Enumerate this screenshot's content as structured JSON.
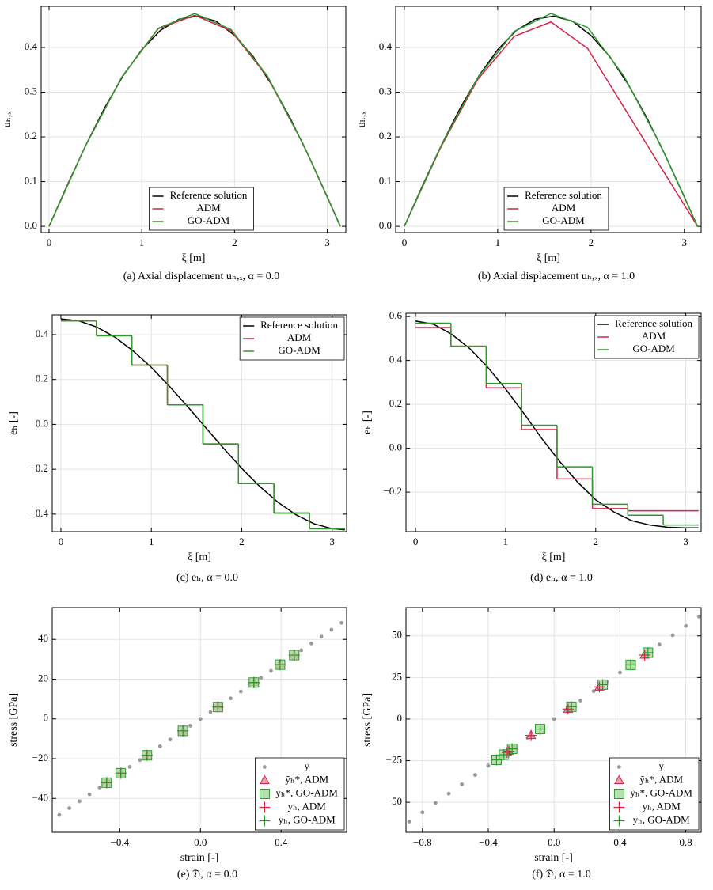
{
  "chart_data": [
    {
      "type": "line",
      "caption": "(a) Axial displacement uₕ,ₓ, α = 0.0",
      "x_label": "ξ [m]",
      "y_label": "uₕ,ₓ",
      "xlim": [
        -0.085,
        3.2
      ],
      "ylim": [
        -0.014,
        0.492
      ],
      "xticks": [
        0,
        1,
        2,
        3
      ],
      "yticks": [
        {
          "value": 0,
          "label": "0.0"
        },
        0.1,
        0.2,
        0.3,
        0.4
      ],
      "grid": true,
      "legend": "lower center",
      "series": [
        {
          "name": "Reference solution",
          "color": "#000000",
          "x": [
            0,
            0.2,
            0.4,
            0.6,
            0.8,
            1.0,
            1.2,
            1.4,
            1.6,
            1.8,
            2.0,
            2.2,
            2.4,
            2.6,
            2.8,
            3.0,
            3.14
          ],
          "values": [
            0,
            0.0934,
            0.183,
            0.265,
            0.337,
            0.395,
            0.438,
            0.463,
            0.47,
            0.459,
            0.427,
            0.38,
            0.317,
            0.242,
            0.157,
            0.066,
            0
          ]
        },
        {
          "name": "ADM",
          "color": "#d6234a",
          "x": [
            0,
            0.393,
            0.785,
            1.178,
            1.571,
            1.963,
            2.356,
            2.749,
            3.142
          ],
          "values": [
            0,
            0.18,
            0.334,
            0.442,
            0.472,
            0.437,
            0.334,
            0.18,
            0
          ]
        },
        {
          "name": "GO-ADM",
          "color": "#2e9a2e",
          "x": [
            0,
            0.393,
            0.785,
            1.178,
            1.571,
            1.963,
            2.356,
            2.749,
            3.142
          ],
          "values": [
            0,
            0.18,
            0.334,
            0.443,
            0.476,
            0.44,
            0.336,
            0.18,
            0
          ]
        }
      ]
    },
    {
      "type": "line",
      "caption": "(b) Axial displacement uₕ,ₓ, α = 1.0",
      "x_label": "ξ [m]",
      "y_label": "uₕ,ₓ",
      "xlim": [
        -0.093,
        3.18
      ],
      "ylim": [
        -0.014,
        0.492
      ],
      "xticks": [
        0,
        1,
        2,
        3
      ],
      "yticks": [
        {
          "value": 0,
          "label": "0.0"
        },
        0.1,
        0.2,
        0.3,
        0.4
      ],
      "grid": true,
      "legend": "lower center",
      "series": [
        {
          "name": "Reference solution",
          "color": "#000000",
          "x": [
            0,
            0.2,
            0.4,
            0.6,
            0.8,
            1.0,
            1.2,
            1.4,
            1.6,
            1.8,
            2.0,
            2.2,
            2.4,
            2.6,
            2.8,
            3.0,
            3.14
          ],
          "values": [
            0,
            0.0934,
            0.183,
            0.265,
            0.337,
            0.395,
            0.438,
            0.463,
            0.47,
            0.459,
            0.427,
            0.38,
            0.317,
            0.242,
            0.157,
            0.066,
            0
          ]
        },
        {
          "name": "ADM",
          "color": "#d6234a",
          "x": [
            0,
            0.393,
            0.785,
            1.178,
            1.571,
            1.963,
            2.356,
            2.749,
            3.142
          ],
          "values": [
            0,
            0.178,
            0.328,
            0.425,
            0.457,
            0.398,
            0.265,
            0.132,
            0
          ]
        },
        {
          "name": "GO-ADM",
          "color": "#2e9a2e",
          "x": [
            0,
            0.393,
            0.785,
            1.178,
            1.571,
            1.963,
            2.356,
            2.749,
            3.142
          ],
          "values": [
            0,
            0.18,
            0.332,
            0.436,
            0.476,
            0.445,
            0.335,
            0.18,
            0
          ]
        }
      ]
    },
    {
      "type": "step",
      "caption": "(c) eₕ, α = 0.0",
      "x_label": "ξ [m]",
      "y_label": "eₕ [-]",
      "xlim": [
        -0.096,
        3.16
      ],
      "ylim": [
        -0.478,
        0.488
      ],
      "xticks": [
        0,
        1,
        2,
        3
      ],
      "yticks": [
        {
          "value": -0.4,
          "label": "−0.4"
        },
        {
          "value": -0.2,
          "label": "−0.2"
        },
        {
          "value": 0,
          "label": "0.0"
        },
        0.2,
        0.4
      ],
      "grid": true,
      "legend": "upper right",
      "series": [
        {
          "name": "Reference solution",
          "color": "#000000",
          "x": [
            0,
            0.2,
            0.4,
            0.6,
            0.8,
            1.0,
            1.2,
            1.4,
            1.6,
            1.8,
            2.0,
            2.2,
            2.4,
            2.6,
            2.8,
            3.0,
            3.14
          ],
          "values": [
            0.47,
            0.461,
            0.433,
            0.388,
            0.327,
            0.254,
            0.17,
            0.08,
            -0.014,
            -0.107,
            -0.196,
            -0.277,
            -0.347,
            -0.403,
            -0.443,
            -0.465,
            -0.47
          ]
        },
        {
          "name": "ADM",
          "color": "#d6234a",
          "bins": [
            0,
            0.393,
            0.785,
            1.178,
            1.571,
            1.963,
            2.356,
            2.749,
            3.142
          ],
          "values": [
            0.461,
            0.395,
            0.264,
            0.087,
            -0.087,
            -0.264,
            -0.395,
            -0.465
          ]
        },
        {
          "name": "GO-ADM",
          "color": "#2e9a2e",
          "bins": [
            0,
            0.393,
            0.785,
            1.178,
            1.571,
            1.963,
            2.356,
            2.749,
            3.142
          ],
          "values": [
            0.461,
            0.395,
            0.264,
            0.087,
            -0.087,
            -0.264,
            -0.395,
            -0.465
          ]
        }
      ]
    },
    {
      "type": "step",
      "caption": "(d) eₕ, α = 1.0",
      "x_label": "ξ [m]",
      "y_label": "eₕ [-]",
      "xlim": [
        -0.106,
        3.17
      ],
      "ylim": [
        -0.38,
        0.615
      ],
      "xticks": [
        0,
        1,
        2,
        3
      ],
      "yticks": [
        {
          "value": -0.2,
          "label": "−0.2"
        },
        {
          "value": 0,
          "label": "0.0"
        },
        0.2,
        0.4,
        0.6
      ],
      "grid": true,
      "legend": "upper right",
      "series": [
        {
          "name": "Reference solution",
          "color": "#000000",
          "x": [
            0,
            0.2,
            0.4,
            0.6,
            0.8,
            1.0,
            1.2,
            1.4,
            1.6,
            1.8,
            2.0,
            2.2,
            2.4,
            2.6,
            2.8,
            3.0,
            3.14
          ],
          "values": [
            0.58,
            0.565,
            0.52,
            0.455,
            0.37,
            0.27,
            0.16,
            0.045,
            -0.06,
            -0.155,
            -0.235,
            -0.29,
            -0.33,
            -0.35,
            -0.36,
            -0.363,
            -0.363
          ]
        },
        {
          "name": "ADM",
          "color": "#d6234a",
          "bins": [
            0,
            0.393,
            0.785,
            1.178,
            1.571,
            1.963,
            2.356,
            2.749,
            3.142
          ],
          "values": [
            0.55,
            0.465,
            0.275,
            0.085,
            -0.14,
            -0.275,
            -0.285,
            -0.285
          ]
        },
        {
          "name": "GO-ADM",
          "color": "#2e9a2e",
          "bins": [
            0,
            0.393,
            0.785,
            1.178,
            1.571,
            1.963,
            2.356,
            2.749,
            3.142
          ],
          "values": [
            0.57,
            0.465,
            0.295,
            0.105,
            -0.085,
            -0.255,
            -0.305,
            -0.35
          ]
        }
      ]
    },
    {
      "type": "scatter",
      "caption": "(e) 𝔇, α = 0.0",
      "x_label": "strain [-]",
      "y_label": "stress [GPa]",
      "xlim": [
        -0.735,
        0.725
      ],
      "ylim": [
        -57,
        56
      ],
      "xticks": [
        {
          "value": -0.4,
          "label": "−0.4"
        },
        {
          "value": 0,
          "label": "0.0"
        },
        0.4
      ],
      "yticks": [
        {
          "value": -40,
          "label": "−40"
        },
        {
          "value": -20,
          "label": "−20"
        },
        0,
        20,
        40
      ],
      "grid": true,
      "legend": "lower right",
      "series": [
        {
          "name": "ỹ",
          "marker": "dot",
          "color": "#9a9a9a",
          "x": [
            -0.7,
            -0.65,
            -0.6,
            -0.55,
            -0.5,
            -0.45,
            -0.4,
            -0.35,
            -0.3,
            -0.25,
            -0.2,
            -0.15,
            -0.1,
            -0.05,
            0,
            0.05,
            0.1,
            0.15,
            0.2,
            0.25,
            0.3,
            0.35,
            0.4,
            0.45,
            0.5,
            0.55,
            0.6,
            0.65,
            0.7
          ],
          "values": [
            -48.3,
            -44.85,
            -41.4,
            -37.95,
            -34.5,
            -31.05,
            -27.6,
            -24.15,
            -20.7,
            -17.25,
            -13.8,
            -10.35,
            -6.9,
            -3.45,
            0,
            3.45,
            6.9,
            10.35,
            13.8,
            17.25,
            20.7,
            24.15,
            27.6,
            31.05,
            34.5,
            37.95,
            41.4,
            44.85,
            48.3
          ]
        },
        {
          "name": "ỹₕ*, ADM",
          "marker": "triangle",
          "color": "#d6234a",
          "x": [
            -0.465,
            -0.395,
            -0.265,
            -0.087,
            0.087,
            0.265,
            0.395,
            0.465
          ],
          "values": [
            -32.1,
            -27.3,
            -18.3,
            -6.0,
            6.0,
            18.3,
            27.3,
            32.1
          ]
        },
        {
          "name": "ỹₕ*, GO-ADM",
          "marker": "square",
          "color": "#2e9a2e",
          "x": [
            -0.465,
            -0.395,
            -0.265,
            -0.087,
            0.087,
            0.265,
            0.395,
            0.465
          ],
          "values": [
            -32.1,
            -27.3,
            -18.3,
            -6.0,
            6.0,
            18.3,
            27.3,
            32.1
          ]
        },
        {
          "name": "yₕ, ADM",
          "marker": "plus",
          "color": "#d6234a",
          "x": [
            -0.465,
            -0.395,
            -0.265,
            -0.087,
            0.087,
            0.265,
            0.395,
            0.465
          ],
          "values": [
            -32.1,
            -27.3,
            -18.3,
            -6.0,
            6.0,
            18.3,
            27.3,
            32.1
          ]
        },
        {
          "name": "yₕ, GO-ADM",
          "marker": "plus",
          "color": "#2e9a2e",
          "x": [
            -0.465,
            -0.395,
            -0.265,
            -0.087,
            0.087,
            0.265,
            0.395,
            0.465
          ],
          "values": [
            -32.1,
            -27.3,
            -18.3,
            -6.0,
            6.0,
            18.3,
            27.3,
            32.1
          ]
        }
      ]
    },
    {
      "type": "scatter",
      "caption": "(f) 𝔇, α = 1.0",
      "x_label": "strain [-]",
      "y_label": "stress [GPa]",
      "xlim": [
        -0.9,
        0.893
      ],
      "ylim": [
        -68,
        67
      ],
      "xticks": [
        {
          "value": -0.8,
          "label": "−0.8"
        },
        {
          "value": -0.4,
          "label": "−0.4"
        },
        {
          "value": 0,
          "label": "0.0"
        },
        0.4,
        0.8
      ],
      "yticks": [
        {
          "value": -50,
          "label": "−50"
        },
        {
          "value": -25,
          "label": "−25"
        },
        0,
        25,
        50
      ],
      "grid": true,
      "legend": "lower right",
      "series": [
        {
          "name": "ỹ",
          "marker": "dot",
          "color": "#9a9a9a",
          "x": [
            -0.88,
            -0.8,
            -0.72,
            -0.64,
            -0.56,
            -0.48,
            -0.4,
            -0.32,
            -0.24,
            -0.16,
            -0.08,
            0,
            0.08,
            0.16,
            0.24,
            0.32,
            0.4,
            0.48,
            0.56,
            0.64,
            0.72,
            0.8,
            0.88
          ],
          "values": [
            -61.6,
            -56,
            -50.4,
            -44.8,
            -39.2,
            -33.6,
            -28,
            -22.4,
            -16.8,
            -11.2,
            -5.6,
            0,
            5.6,
            11.2,
            16.8,
            22.4,
            28,
            33.6,
            39.2,
            44.8,
            50.4,
            56,
            61.6
          ]
        },
        {
          "name": "ỹₕ*, ADM",
          "marker": "triangle",
          "color": "#d6234a",
          "x": [
            -0.285,
            -0.275,
            -0.14,
            0.085,
            0.275,
            0.55
          ],
          "values": [
            -20,
            -19.3,
            -9.8,
            6.0,
            19.3,
            38.5
          ]
        },
        {
          "name": "ỹₕ*, GO-ADM",
          "marker": "square",
          "color": "#2e9a2e",
          "x": [
            -0.35,
            -0.305,
            -0.255,
            -0.085,
            0.105,
            0.295,
            0.465,
            0.57
          ],
          "values": [
            -24.5,
            -21.4,
            -17.9,
            -6.0,
            7.4,
            20.7,
            32.6,
            39.9
          ]
        },
        {
          "name": "yₕ, ADM",
          "marker": "plus",
          "color": "#d6234a",
          "x": [
            -0.285,
            -0.275,
            -0.14,
            0.085,
            0.275,
            0.55
          ],
          "values": [
            -20,
            -19.3,
            -9.8,
            6.0,
            19.3,
            38.5
          ]
        },
        {
          "name": "yₕ, GO-ADM",
          "marker": "plus",
          "color": "#2e9a2e",
          "x": [
            -0.35,
            -0.305,
            -0.255,
            -0.085,
            0.105,
            0.295,
            0.465,
            0.57
          ],
          "values": [
            -24.5,
            -21.4,
            -17.9,
            -6.0,
            7.4,
            20.7,
            32.6,
            39.9
          ]
        }
      ]
    }
  ]
}
